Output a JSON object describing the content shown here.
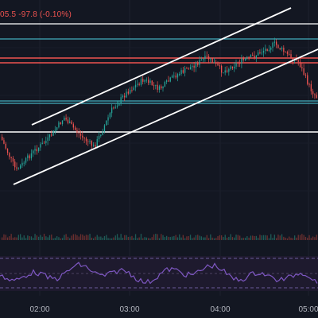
{
  "header": {
    "price_fragment": "05.5",
    "change": "-97.8",
    "change_pct": "(-0.10%)"
  },
  "time_axis": {
    "labels": [
      "02:00",
      "03:00",
      "04:00",
      "05:00"
    ]
  },
  "colors": {
    "background": "#131722",
    "bullish_candle": "#26a69a",
    "bearish_candle": "#ef5350",
    "trendline": "#ffffff",
    "cyan_level": "#4dd0e1",
    "red_level": "#ef5350",
    "rsi_line": "#7e57c2",
    "rsi_band": "#2a2140",
    "header_text": "#ef5350",
    "axis_text": "#b2b5be"
  }
}
